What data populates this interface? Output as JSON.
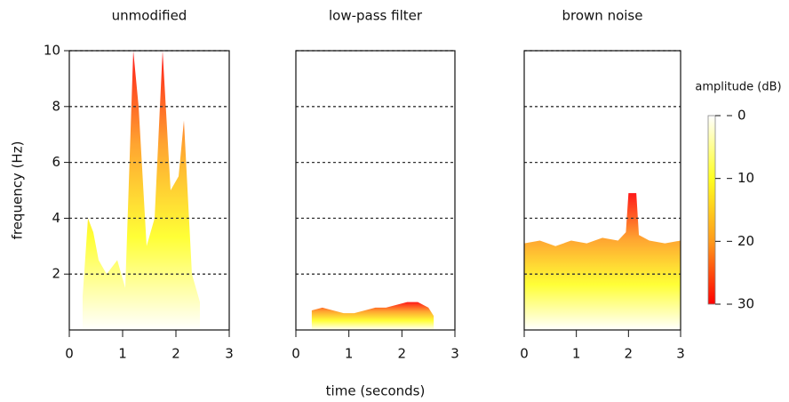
{
  "chart_data": [
    {
      "type": "spectrogram",
      "title": "unmodified",
      "ylabel": "frequency (Hz)",
      "x": [
        0.25,
        0.35,
        0.45,
        0.55,
        0.7,
        0.9,
        1.05,
        1.2,
        1.3,
        1.45,
        1.6,
        1.75,
        1.9,
        2.05,
        2.15,
        2.3,
        2.45
      ],
      "values": [
        1.2,
        4,
        3.5,
        2.5,
        2,
        2.5,
        1.5,
        10,
        8,
        3,
        4,
        10,
        5,
        5.5,
        7.5,
        2,
        1
      ],
      "xlim": [
        0,
        3
      ],
      "xticks": [
        0,
        1,
        2,
        3
      ],
      "ylim": [
        0,
        10
      ],
      "yticks": [
        2,
        4,
        6,
        8,
        10
      ],
      "ytick_labels": true,
      "grid": true
    },
    {
      "type": "spectrogram",
      "title": "low-pass filter",
      "xlabel": "time (seconds)",
      "x": [
        0.3,
        0.5,
        0.7,
        0.9,
        1.1,
        1.3,
        1.5,
        1.7,
        1.9,
        2.1,
        2.3,
        2.5,
        2.6
      ],
      "values": [
        0.7,
        0.8,
        0.7,
        0.6,
        0.6,
        0.7,
        0.8,
        0.8,
        0.9,
        1.0,
        1.0,
        0.8,
        0.5
      ],
      "xlim": [
        0,
        3
      ],
      "xticks": [
        0,
        1,
        2,
        3
      ],
      "ylim": [
        0,
        10
      ],
      "yticks": [
        2,
        4,
        6,
        8,
        10
      ],
      "ytick_labels": false,
      "grid": true
    },
    {
      "type": "spectrogram",
      "title": "brown noise",
      "x": [
        0,
        0.3,
        0.6,
        0.9,
        1.2,
        1.5,
        1.8,
        1.95,
        2.0,
        2.15,
        2.2,
        2.4,
        2.7,
        3
      ],
      "values": [
        3.1,
        3.2,
        3.0,
        3.2,
        3.1,
        3.3,
        3.2,
        3.5,
        4.9,
        4.9,
        3.4,
        3.2,
        3.1,
        3.2
      ],
      "xlim": [
        0,
        3
      ],
      "xticks": [
        0,
        1,
        2,
        3
      ],
      "ylim": [
        0,
        10
      ],
      "yticks": [
        2,
        4,
        6,
        8,
        10
      ],
      "ytick_labels": false,
      "grid": true
    },
    {
      "type": "colorbar",
      "title": "amplitude (dB)",
      "lim": [
        0,
        30
      ],
      "ticks": [
        0,
        10,
        20,
        30
      ],
      "colors": [
        "#ffffff",
        "#ffff20",
        "#ff9a1a",
        "#ff0000"
      ]
    }
  ]
}
